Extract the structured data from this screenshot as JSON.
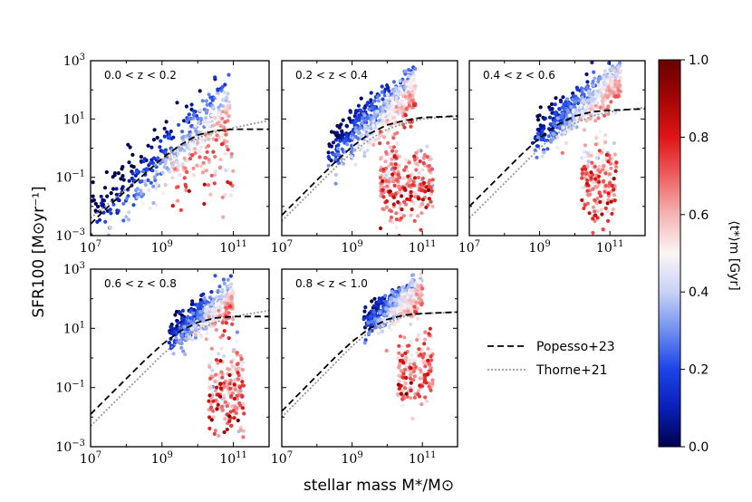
{
  "chart_data": {
    "type": "scatter",
    "xlabel": "stellar mass M*/M⊙",
    "ylabel": "SFR100 [M⊙yr⁻¹]",
    "x_axis": {
      "scale": "log",
      "min_exp": 7,
      "max_exp": 12,
      "ticks": [
        {
          "base": "10",
          "exp": "7"
        },
        {
          "base": "10",
          "exp": "9"
        },
        {
          "base": "10",
          "exp": "11"
        }
      ]
    },
    "y_axis": {
      "scale": "log",
      "min_exp": -3,
      "max_exp": 3,
      "ticks": [
        {
          "base": "10",
          "exp": "3"
        },
        {
          "base": "10",
          "exp": "1"
        },
        {
          "base": "10",
          "exp": "−1"
        },
        {
          "base": "10",
          "exp": "−3"
        }
      ]
    },
    "colorbar": {
      "label": "⟨t*⟩m [Gyr]",
      "min": 0.0,
      "max": 1.0,
      "ticks": [
        "0.0",
        "0.2",
        "0.4",
        "0.6",
        "0.8",
        "1.0"
      ],
      "colormap": [
        "#00004d",
        "#0a1fb8",
        "#1b44e6",
        "#6f8ff0",
        "#c8d2f5",
        "#fbf5f5",
        "#f4b4b4",
        "#ee5f5f",
        "#df1515",
        "#a40505",
        "#670000"
      ]
    },
    "legend": {
      "placement": "lower-right panel area",
      "entries": [
        {
          "name": "Popesso+23",
          "style": "dashed",
          "color": "#000000"
        },
        {
          "name": "Thorne+21",
          "style": "dotted",
          "color": "#999999"
        }
      ]
    },
    "panels": [
      {
        "label": "0.0 < z < 0.2",
        "popesso": [
          [
            7.0,
            -2.6
          ],
          [
            7.5,
            -2.0
          ],
          [
            8.0,
            -1.45
          ],
          [
            8.5,
            -0.9
          ],
          [
            9.0,
            -0.35
          ],
          [
            9.5,
            0.1
          ],
          [
            10.0,
            0.45
          ],
          [
            10.5,
            0.6
          ],
          [
            11.0,
            0.65
          ],
          [
            12.0,
            0.65
          ]
        ],
        "thorne": [
          [
            7.0,
            -2.4
          ],
          [
            7.5,
            -1.9
          ],
          [
            8.0,
            -1.4
          ],
          [
            8.5,
            -0.9
          ],
          [
            9.0,
            -0.4
          ],
          [
            9.5,
            0.05
          ],
          [
            10.0,
            0.35
          ],
          [
            10.5,
            0.55
          ],
          [
            11.0,
            0.7
          ],
          [
            12.0,
            0.95
          ]
        ],
        "ms_branch": {
          "x_range": [
            7.0,
            10.9
          ],
          "slope": 1.0,
          "intercept": -9.4,
          "scatter": 0.55,
          "n": 420
        },
        "q_cloud": {
          "x_range": [
            9.3,
            11.0
          ],
          "y_mean": -0.8,
          "y_sd": 0.7,
          "n": 70
        },
        "age_anchor": {
          "x0": 8.0,
          "x1": 11.0,
          "a0": 0.12,
          "a1": 0.5
        }
      },
      {
        "label": "0.2 < z < 0.4",
        "popesso": [
          [
            7.0,
            -2.3
          ],
          [
            7.5,
            -1.7
          ],
          [
            8.0,
            -1.1
          ],
          [
            8.5,
            -0.5
          ],
          [
            9.0,
            0.05
          ],
          [
            9.5,
            0.5
          ],
          [
            10.0,
            0.8
          ],
          [
            10.5,
            0.95
          ],
          [
            11.0,
            1.05
          ],
          [
            12.0,
            1.1
          ]
        ],
        "thorne": [
          [
            7.0,
            -2.5
          ],
          [
            7.5,
            -1.9
          ],
          [
            8.0,
            -1.3
          ],
          [
            8.5,
            -0.7
          ],
          [
            9.0,
            -0.15
          ],
          [
            9.5,
            0.3
          ],
          [
            10.0,
            0.65
          ],
          [
            10.5,
            0.85
          ],
          [
            11.0,
            1.0
          ],
          [
            12.0,
            1.1
          ]
        ],
        "ms_branch": {
          "x_range": [
            8.3,
            10.8
          ],
          "slope": 0.85,
          "intercept": -7.2,
          "scatter": 0.45,
          "n": 520
        },
        "q_cloud": {
          "x_range": [
            9.8,
            11.3
          ],
          "y_mean": -1.2,
          "y_sd": 0.6,
          "n": 300
        },
        "age_anchor": {
          "x0": 8.5,
          "x1": 11.0,
          "a0": 0.1,
          "a1": 0.6
        }
      },
      {
        "label": "0.4 < z < 0.6",
        "popesso": [
          [
            7.0,
            -2.0
          ],
          [
            7.5,
            -1.4
          ],
          [
            8.0,
            -0.8
          ],
          [
            8.5,
            -0.2
          ],
          [
            9.0,
            0.35
          ],
          [
            9.5,
            0.8
          ],
          [
            10.0,
            1.1
          ],
          [
            10.5,
            1.25
          ],
          [
            11.0,
            1.3
          ],
          [
            12.0,
            1.35
          ]
        ],
        "thorne": [
          [
            7.0,
            -2.4
          ],
          [
            7.5,
            -1.8
          ],
          [
            8.0,
            -1.2
          ],
          [
            8.5,
            -0.6
          ],
          [
            9.0,
            0.0
          ],
          [
            9.5,
            0.5
          ],
          [
            10.0,
            0.85
          ],
          [
            10.5,
            1.1
          ],
          [
            11.0,
            1.25
          ],
          [
            12.0,
            1.4
          ]
        ],
        "ms_branch": {
          "x_range": [
            8.8,
            11.3
          ],
          "slope": 0.8,
          "intercept": -6.7,
          "scatter": 0.35,
          "n": 480
        },
        "q_cloud": {
          "x_range": [
            10.2,
            11.2
          ],
          "y_mean": -1.1,
          "y_sd": 0.7,
          "n": 200
        },
        "age_anchor": {
          "x0": 9.0,
          "x1": 11.2,
          "a0": 0.1,
          "a1": 0.55
        }
      },
      {
        "label": "0.6 < z < 0.8",
        "popesso": [
          [
            7.0,
            -1.9
          ],
          [
            7.5,
            -1.3
          ],
          [
            8.0,
            -0.7
          ],
          [
            8.5,
            -0.1
          ],
          [
            9.0,
            0.45
          ],
          [
            9.5,
            0.9
          ],
          [
            10.0,
            1.2
          ],
          [
            10.5,
            1.35
          ],
          [
            11.0,
            1.4
          ],
          [
            12.0,
            1.4
          ]
        ],
        "thorne": [
          [
            7.0,
            -2.3
          ],
          [
            7.5,
            -1.7
          ],
          [
            8.0,
            -1.1
          ],
          [
            8.5,
            -0.5
          ],
          [
            9.0,
            0.1
          ],
          [
            9.5,
            0.6
          ],
          [
            10.0,
            0.95
          ],
          [
            10.5,
            1.2
          ],
          [
            11.0,
            1.4
          ],
          [
            12.0,
            1.6
          ]
        ],
        "ms_branch": {
          "x_range": [
            9.2,
            11.0
          ],
          "slope": 0.7,
          "intercept": -5.7,
          "scatter": 0.3,
          "n": 520
        },
        "q_cloud": {
          "x_range": [
            10.3,
            11.3
          ],
          "y_mean": -1.2,
          "y_sd": 0.75,
          "n": 220
        },
        "age_anchor": {
          "x0": 9.3,
          "x1": 11.0,
          "a0": 0.1,
          "a1": 0.55
        }
      },
      {
        "label": "0.8 < z < 1.0",
        "popesso": [
          [
            7.0,
            -1.8
          ],
          [
            7.5,
            -1.2
          ],
          [
            8.0,
            -0.6
          ],
          [
            8.5,
            0.0
          ],
          [
            9.0,
            0.55
          ],
          [
            9.5,
            1.0
          ],
          [
            10.0,
            1.3
          ],
          [
            10.5,
            1.45
          ],
          [
            11.0,
            1.5
          ],
          [
            12.0,
            1.55
          ]
        ],
        "thorne": [
          [
            7.0,
            -2.0
          ],
          [
            7.5,
            -1.4
          ],
          [
            8.0,
            -0.8
          ],
          [
            8.5,
            -0.2
          ],
          [
            9.0,
            0.4
          ],
          [
            9.5,
            0.9
          ],
          [
            10.0,
            1.2
          ],
          [
            10.5,
            1.4
          ],
          [
            11.0,
            1.5
          ],
          [
            12.0,
            1.55
          ]
        ],
        "ms_branch": {
          "x_range": [
            9.3,
            11.0
          ],
          "slope": 0.7,
          "intercept": -5.4,
          "scatter": 0.28,
          "n": 520
        },
        "q_cloud": {
          "x_range": [
            10.3,
            11.3
          ],
          "y_mean": -0.4,
          "y_sd": 0.55,
          "n": 200
        },
        "age_anchor": {
          "x0": 9.4,
          "x1": 11.0,
          "a0": 0.1,
          "a1": 0.55
        }
      }
    ]
  }
}
